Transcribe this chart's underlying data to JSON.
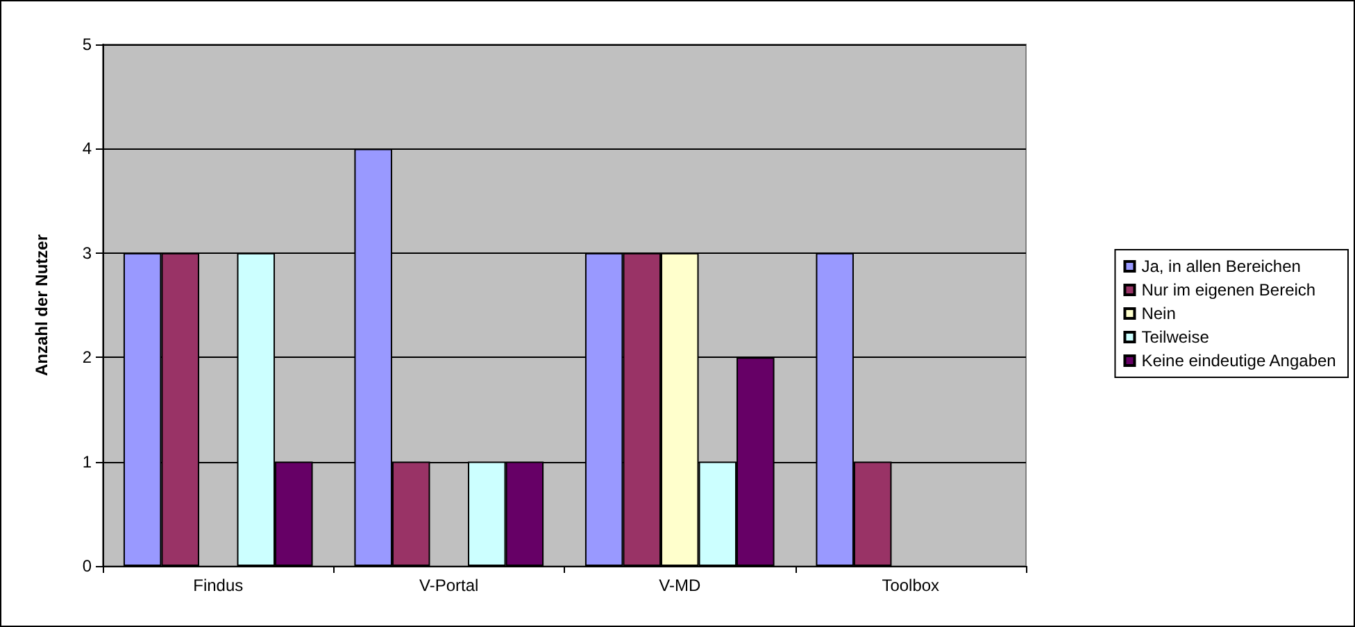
{
  "chart_data": {
    "type": "bar",
    "ylabel": "Anzahl der Nutzer",
    "categories": [
      "Findus",
      "V-Portal",
      "V-MD",
      "Toolbox"
    ],
    "series": [
      {
        "name": "Ja, in allen Bereichen",
        "color": "#9999ff",
        "values": [
          3,
          4,
          3,
          3
        ]
      },
      {
        "name": "Nur im eigenen Bereich",
        "color": "#993366",
        "values": [
          3,
          1,
          3,
          1
        ]
      },
      {
        "name": "Nein",
        "color": "#ffffcc",
        "values": [
          0,
          0,
          3,
          0
        ]
      },
      {
        "name": "Teilweise",
        "color": "#ccffff",
        "values": [
          3,
          1,
          1,
          0
        ]
      },
      {
        "name": "Keine eindeutige Angaben",
        "color": "#660066",
        "values": [
          1,
          1,
          2,
          0
        ]
      }
    ],
    "ylim": [
      0,
      5
    ],
    "yticks": [
      0,
      1,
      2,
      3,
      4,
      5
    ],
    "grid": "y",
    "legend": "right"
  }
}
